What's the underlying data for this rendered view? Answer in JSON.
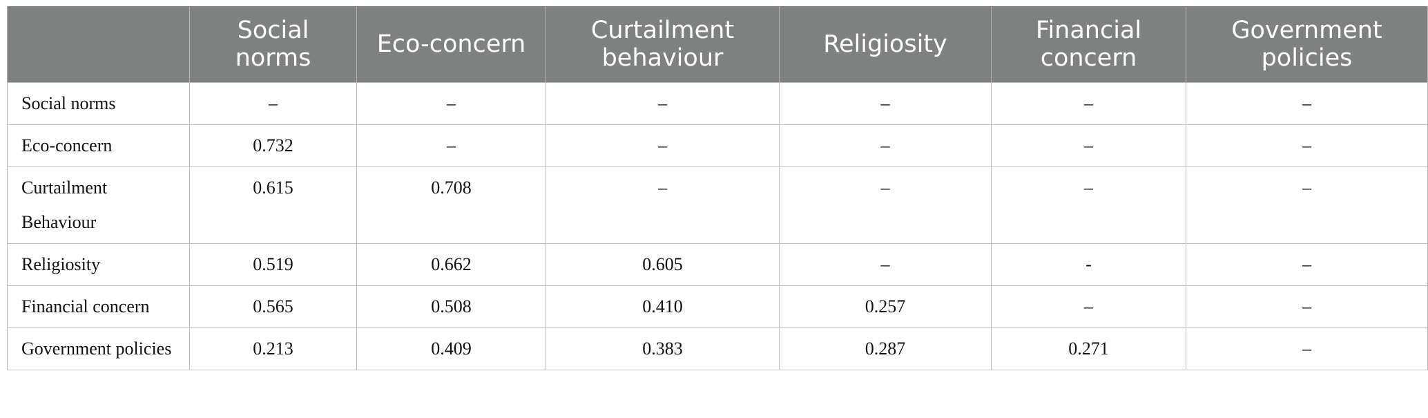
{
  "table": {
    "header": [
      "",
      "Social norms",
      "Eco-concern",
      "Curtailment behaviour",
      "Religiosity",
      "Financial concern",
      "Government policies"
    ],
    "rows": [
      [
        "Social norms",
        "–",
        "–",
        "–",
        "–",
        "–",
        "–"
      ],
      [
        "Eco-concern",
        "0.732",
        "–",
        "–",
        "–",
        "–",
        "–"
      ],
      [
        "Curtailment Behaviour",
        "0.615",
        "0.708",
        "–",
        "–",
        "–",
        "–"
      ],
      [
        "Religiosity",
        "0.519",
        "0.662",
        "0.605",
        "–",
        "-",
        "–"
      ],
      [
        "Financial concern",
        "0.565",
        "0.508",
        "0.410",
        "0.257",
        "–",
        "–"
      ],
      [
        "Government policies",
        "0.213",
        "0.409",
        "0.383",
        "0.287",
        "0.271",
        "–"
      ]
    ]
  }
}
